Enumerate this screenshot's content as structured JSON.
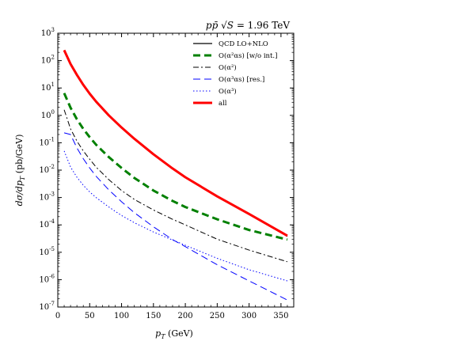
{
  "chart_data": {
    "type": "line",
    "title": "pp̄ √S = 1.96 TeV",
    "xlabel": "p_T (GeV)",
    "ylabel": "dσ/dp_T (pb/GeV)",
    "xlim": [
      0,
      370
    ],
    "ylim": [
      1e-07,
      1000
    ],
    "yscale": "log",
    "x_ticks": [
      "0",
      "50",
      "100",
      "150",
      "200",
      "250",
      "300",
      "350"
    ],
    "y_ticks": [
      "10^-7",
      "10^-6",
      "10^-5",
      "10^-4",
      "10^-3",
      "10^-2",
      "10^-1",
      "10^0",
      "10^1",
      "10^2",
      "10^3"
    ],
    "legend_position": "top-right",
    "grid": false,
    "x": [
      10,
      20,
      30,
      40,
      50,
      60,
      80,
      100,
      120,
      150,
      180,
      200,
      250,
      300,
      360
    ],
    "series": [
      {
        "name": "QCD LO+NLO",
        "color": "#000000",
        "style": "solid",
        "values": [
          240,
          75,
          30,
          13,
          6.2,
          3.2,
          1.0,
          0.36,
          0.14,
          0.038,
          0.0115,
          0.0055,
          0.0011,
          0.00024,
          3.8e-05
        ]
      },
      {
        "name": "O(α²αs) [w/o int.]",
        "color": "#008000",
        "style": "dashed-thick",
        "values": [
          6.5,
          1.9,
          0.72,
          0.32,
          0.16,
          0.085,
          0.03,
          0.012,
          0.0052,
          0.0018,
          0.00075,
          0.00045,
          0.00016,
          6.5e-05,
          2.9e-05
        ]
      },
      {
        "name": "O(α²)",
        "color": "#000000",
        "style": "dashdot",
        "values": [
          1.6,
          0.32,
          0.115,
          0.05,
          0.025,
          0.013,
          0.0045,
          0.0018,
          0.00085,
          0.00035,
          0.00016,
          0.0001,
          3e-05,
          1.2e-05,
          4.5e-06
        ]
      },
      {
        "name": "O(α³αs) [res.]",
        "color": "#0000ff",
        "style": "dashed",
        "values": [
          0.23,
          0.2,
          0.065,
          0.026,
          0.012,
          0.006,
          0.0019,
          0.0007,
          0.00028,
          8.5e-05,
          2.9e-05,
          1.6e-05,
          3.5e-06,
          9e-07,
          1.8e-07
        ]
      },
      {
        "name": "O(α³)",
        "color": "#0000ff",
        "style": "dotted",
        "values": [
          0.05,
          0.013,
          0.0055,
          0.0028,
          0.0016,
          0.001,
          0.00045,
          0.00022,
          0.00012,
          5.5e-05,
          2.8e-05,
          1.8e-05,
          6e-06,
          2.3e-06,
          9e-07
        ]
      },
      {
        "name": "all",
        "color": "#ff0000",
        "style": "solid-thick",
        "values": [
          240,
          75,
          30,
          13,
          6.2,
          3.2,
          1.0,
          0.36,
          0.14,
          0.038,
          0.0115,
          0.0055,
          0.0011,
          0.00025,
          4e-05
        ]
      }
    ]
  }
}
